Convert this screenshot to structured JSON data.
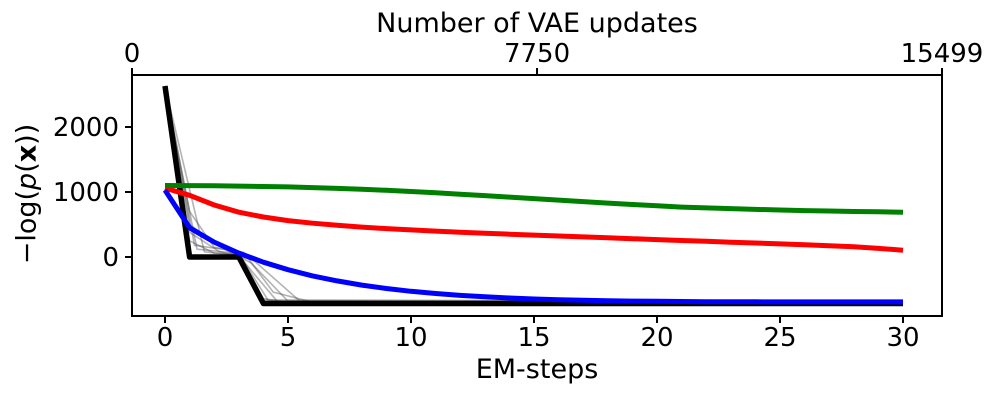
{
  "figure": {
    "ylabel_parts": {
      "pre": "−log(",
      "p_italic": "p",
      "open_paren": "(",
      "x_bold": "x",
      "post": "))"
    }
  },
  "chart_data": {
    "type": "line",
    "title": "Number of VAE updates",
    "xlabel": "EM-steps",
    "ylabel": "-log(p(x))",
    "axes": {
      "x_bottom": {
        "label": "EM-steps",
        "ticks": [
          0,
          5,
          10,
          15,
          20,
          25,
          30
        ],
        "lim": [
          -1.5,
          31.5
        ]
      },
      "x_top": {
        "label": "Number of VAE updates",
        "ticks": [
          0,
          7750,
          15499
        ],
        "lim": [
          0,
          15499
        ]
      },
      "y_left": {
        "ticks": [
          0,
          1000,
          2000
        ],
        "lim": [
          -910,
          2800
        ]
      }
    },
    "grid": false,
    "legend": null,
    "series": [
      {
        "name": "gray-run-1",
        "color": "#3a3a3a",
        "width": 1.6,
        "opacity": 0.38,
        "x": [
          0,
          1,
          2,
          3,
          4,
          5,
          30
        ],
        "y": [
          2630,
          250,
          60,
          40,
          -640,
          -700,
          -702
        ]
      },
      {
        "name": "gray-run-2",
        "color": "#3a3a3a",
        "width": 1.6,
        "opacity": 0.38,
        "x": [
          0,
          1.3,
          3,
          4.2,
          30
        ],
        "y": [
          2630,
          120,
          55,
          -670,
          -695
        ]
      },
      {
        "name": "gray-run-3",
        "color": "#3a3a3a",
        "width": 1.6,
        "opacity": 0.38,
        "x": [
          0,
          1,
          2.5,
          3.5,
          5,
          30
        ],
        "y": [
          2630,
          500,
          100,
          -90,
          -680,
          -690
        ]
      },
      {
        "name": "gray-run-4",
        "color": "#3a3a3a",
        "width": 1.6,
        "opacity": 0.38,
        "x": [
          0,
          1.6,
          3,
          4.6,
          30
        ],
        "y": [
          2630,
          80,
          20,
          -700,
          -705
        ]
      },
      {
        "name": "gray-run-5",
        "color": "#3a3a3a",
        "width": 1.6,
        "opacity": 0.38,
        "x": [
          0,
          1,
          2,
          3.2,
          4.4,
          6,
          30
        ],
        "y": [
          2630,
          700,
          150,
          70,
          -540,
          -695,
          -698
        ]
      },
      {
        "name": "gray-run-6",
        "color": "#3a3a3a",
        "width": 1.6,
        "opacity": 0.38,
        "x": [
          0,
          1.2,
          2.8,
          4,
          30
        ],
        "y": [
          2630,
          180,
          95,
          -660,
          -688
        ]
      },
      {
        "name": "gray-run-7",
        "color": "#3a3a3a",
        "width": 1.6,
        "opacity": 0.38,
        "x": [
          0,
          1,
          2.2,
          3.6,
          5.5,
          30
        ],
        "y": [
          2630,
          380,
          85,
          -50,
          -685,
          -693
        ]
      },
      {
        "name": "black-line",
        "color": "#000000",
        "width": 5.5,
        "opacity": 1,
        "x": [
          0,
          1,
          3,
          4,
          30
        ],
        "y": [
          2630,
          0,
          0,
          -715,
          -715
        ]
      },
      {
        "name": "red-line",
        "color": "#ff0000",
        "width": 5,
        "opacity": 1,
        "y": [
          1060,
          950,
          800,
          690,
          615,
          560,
          520,
          487,
          460,
          437,
          417,
          399,
          382,
          366,
          351,
          337,
          323,
          309,
          295,
          281,
          267,
          254,
          241,
          228,
          215,
          202,
          188,
          173,
          157,
          132,
          105
        ]
      },
      {
        "name": "green-line",
        "color": "#008000",
        "width": 5,
        "opacity": 1,
        "y": [
          1100,
          1098,
          1095,
          1090,
          1085,
          1078,
          1068,
          1056,
          1042,
          1026,
          1008,
          988,
          966,
          944,
          921,
          898,
          875,
          852,
          830,
          808,
          787,
          768,
          756,
          744,
          733,
          723,
          714,
          707,
          700,
          695,
          690
        ]
      },
      {
        "name": "blue-line",
        "color": "#0000ff",
        "width": 5,
        "opacity": 1,
        "y": [
          1030,
          450,
          230,
          60,
          -80,
          -195,
          -290,
          -368,
          -432,
          -484,
          -527,
          -562,
          -590,
          -613,
          -631,
          -646,
          -657,
          -666,
          -673,
          -678,
          -682,
          -685,
          -687,
          -688,
          -689,
          -690,
          -690,
          -690,
          -690,
          -690,
          -690
        ]
      }
    ]
  }
}
